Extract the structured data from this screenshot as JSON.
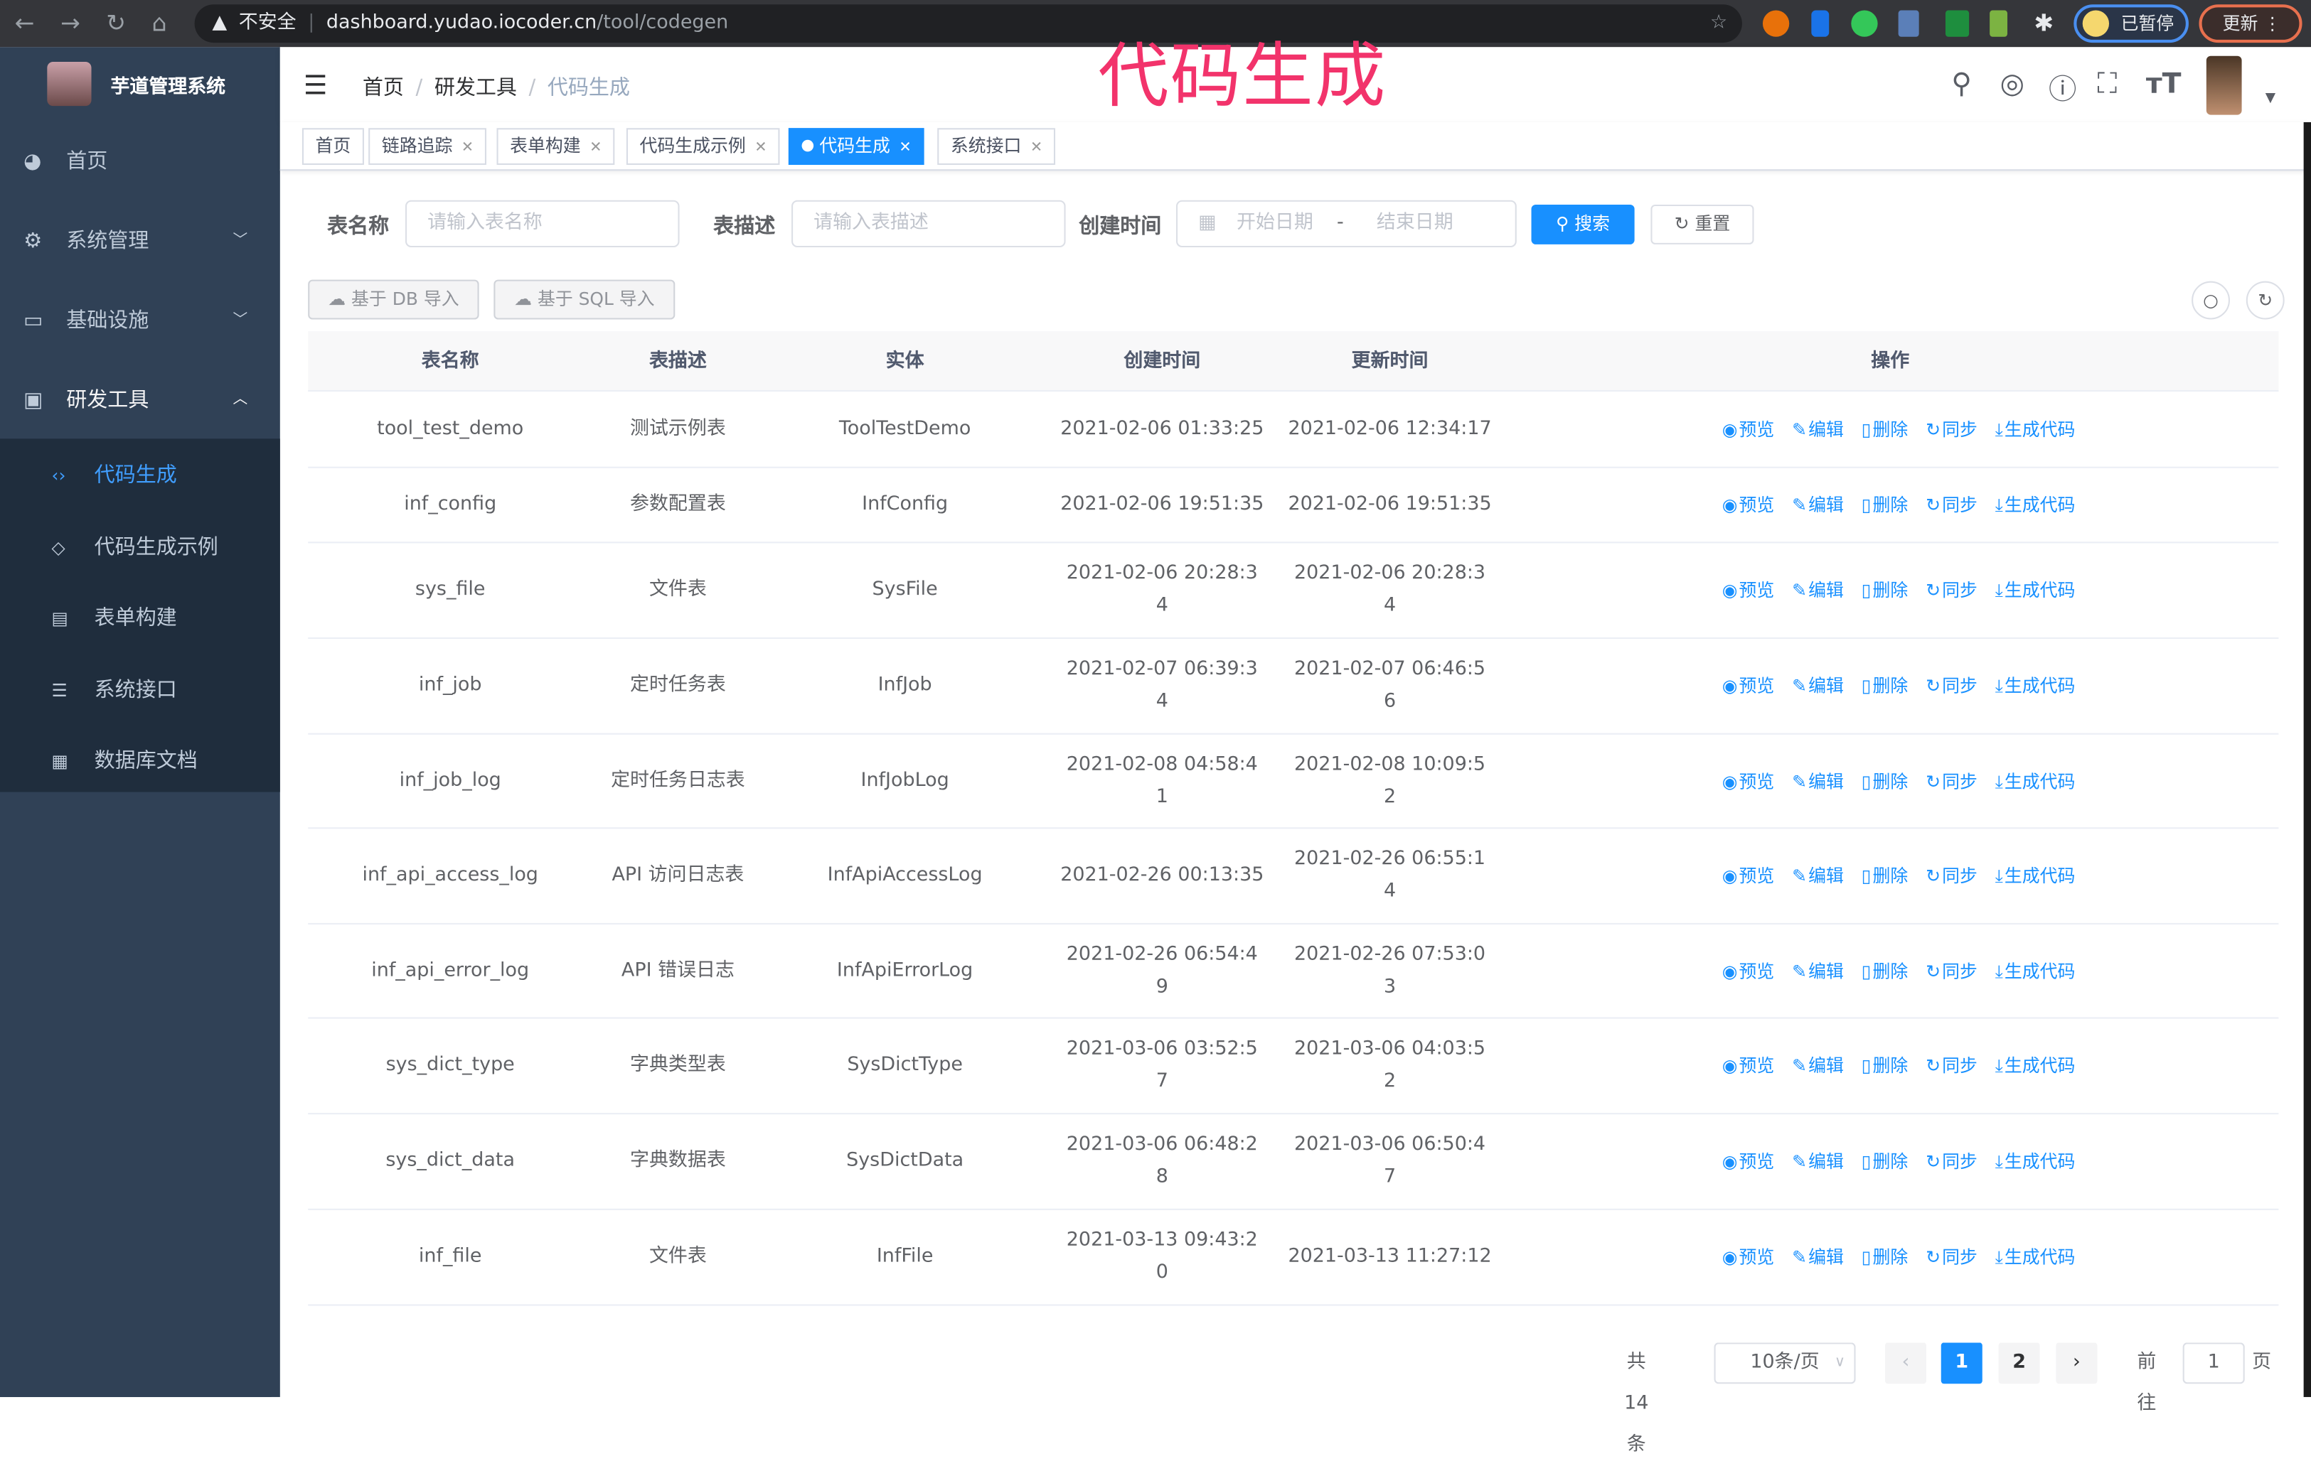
{
  "browser": {
    "url_host": "dashboard.yudao.iocoder.cn",
    "url_path": "/tool/codegen",
    "insecure_label": "不安全",
    "paused_label": "已暂停",
    "update_label": "更新"
  },
  "app": {
    "brand": "芋道管理系统",
    "overlay_title": "代码生成"
  },
  "sidebar": {
    "items": [
      {
        "label": "首页",
        "icon": "dashboard-icon"
      },
      {
        "label": "系统管理",
        "icon": "gear-icon"
      },
      {
        "label": "基础设施",
        "icon": "monitor-icon"
      },
      {
        "label": "研发工具",
        "icon": "toolbox-icon"
      }
    ],
    "sub_items": [
      {
        "label": "代码生成",
        "icon": "code-icon",
        "active": true
      },
      {
        "label": "代码生成示例",
        "icon": "shield-icon"
      },
      {
        "label": "表单构建",
        "icon": "form-icon"
      },
      {
        "label": "系统接口",
        "icon": "sliders-icon"
      },
      {
        "label": "数据库文档",
        "icon": "table-icon"
      }
    ]
  },
  "breadcrumb": [
    "首页",
    "研发工具",
    "代码生成"
  ],
  "tags": [
    {
      "label": "首页"
    },
    {
      "label": "链路追踪"
    },
    {
      "label": "表单构建"
    },
    {
      "label": "代码生成示例"
    },
    {
      "label": "代码生成",
      "active": true
    },
    {
      "label": "系统接口"
    }
  ],
  "search": {
    "table_name_label": "表名称",
    "table_name_placeholder": "请输入表名称",
    "table_comment_label": "表描述",
    "table_comment_placeholder": "请输入表描述",
    "create_time_label": "创建时间",
    "start_placeholder": "开始日期",
    "end_placeholder": "结束日期",
    "range_sep": "-",
    "search_btn": "搜索",
    "reset_btn": "重置"
  },
  "toolbar": {
    "import_db": "基于 DB 导入",
    "import_sql": "基于 SQL 导入"
  },
  "table": {
    "columns": [
      "表名称",
      "表描述",
      "实体",
      "创建时间",
      "更新时间",
      "操作"
    ],
    "actions": [
      "预览",
      "编辑",
      "删除",
      "同步",
      "生成代码"
    ],
    "rows": [
      [
        "tool_test_demo",
        "测试示例表",
        "ToolTestDemo",
        "2021-02-06 01:33:25",
        "2021-02-06 12:34:17"
      ],
      [
        "inf_config",
        "参数配置表",
        "InfConfig",
        "2021-02-06 19:51:35",
        "2021-02-06 19:51:35"
      ],
      [
        "sys_file",
        "文件表",
        "SysFile",
        "2021-02-06 20:28:34",
        "2021-02-06 20:28:34"
      ],
      [
        "inf_job",
        "定时任务表",
        "InfJob",
        "2021-02-07 06:39:34",
        "2021-02-07 06:46:56"
      ],
      [
        "inf_job_log",
        "定时任务日志表",
        "InfJobLog",
        "2021-02-08 04:58:41",
        "2021-02-08 10:09:52"
      ],
      [
        "inf_api_access_log",
        "API 访问日志表",
        "InfApiAccessLog",
        "2021-02-26 00:13:35",
        "2021-02-26 06:55:14"
      ],
      [
        "inf_api_error_log",
        "API 错误日志",
        "InfApiErrorLog",
        "2021-02-26 06:54:49",
        "2021-02-26 07:53:03"
      ],
      [
        "sys_dict_type",
        "字典类型表",
        "SysDictType",
        "2021-03-06 03:52:57",
        "2021-03-06 04:03:52"
      ],
      [
        "sys_dict_data",
        "字典数据表",
        "SysDictData",
        "2021-03-06 06:48:28",
        "2021-03-06 06:50:47"
      ],
      [
        "inf_file",
        "文件表",
        "InfFile",
        "2021-03-13 09:43:20",
        "2021-03-13 11:27:12"
      ]
    ]
  },
  "pagination": {
    "total_label": "共 14 条",
    "page_size": "10条/页",
    "pages": [
      "1",
      "2"
    ],
    "current": "1",
    "goto_label": "前往",
    "goto_value": "1",
    "page_suffix": "页"
  },
  "colors": {
    "primary": "#1890ff",
    "sidebar": "#304156",
    "submenu": "#1f2d3d",
    "overlay": "#f2336b"
  }
}
